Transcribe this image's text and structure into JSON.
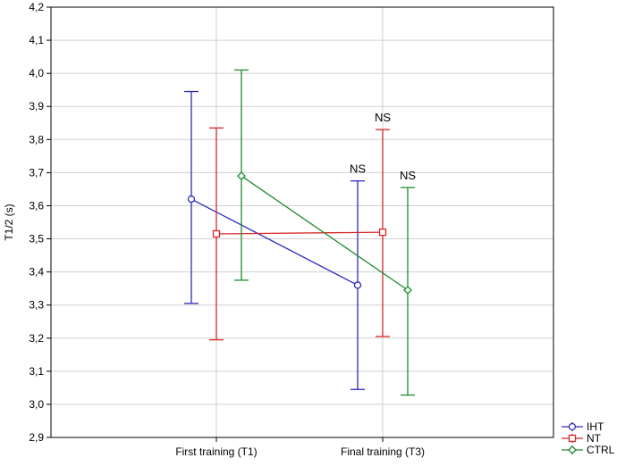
{
  "chart_data": {
    "type": "line",
    "xlabel": "",
    "ylabel": "T1/2 (s)",
    "ylim": [
      2.9,
      4.2
    ],
    "y_ticks": [
      "2,9",
      "3,0",
      "3,1",
      "3,2",
      "3,3",
      "3,4",
      "3,5",
      "3,6",
      "3,7",
      "3,8",
      "3,9",
      "4,0",
      "4,1",
      "4,2"
    ],
    "categories": [
      "First training (T1)",
      "Final training (T3)"
    ],
    "grid": true,
    "legend_position": "bottom-right",
    "series": [
      {
        "name": "IHT",
        "color": "#2b2bbd",
        "marker": "circle",
        "values": [
          3.62,
          3.36
        ],
        "ci_low": [
          3.305,
          3.045
        ],
        "ci_high": [
          3.945,
          3.675
        ]
      },
      {
        "name": "NT",
        "color": "#d62828",
        "marker": "square",
        "values": [
          3.515,
          3.52
        ],
        "ci_low": [
          3.195,
          3.205
        ],
        "ci_high": [
          3.835,
          3.83
        ]
      },
      {
        "name": "CTRL",
        "color": "#1f8a2e",
        "marker": "diamond",
        "values": [
          3.69,
          3.345
        ],
        "ci_low": [
          3.375,
          3.028
        ],
        "ci_high": [
          4.01,
          3.655
        ]
      }
    ],
    "annotations": [
      {
        "text": "NS",
        "series": "IHT",
        "category": 1
      },
      {
        "text": "NS",
        "series": "NT",
        "category": 1
      },
      {
        "text": "NS",
        "series": "CTRL",
        "category": 1
      }
    ]
  }
}
